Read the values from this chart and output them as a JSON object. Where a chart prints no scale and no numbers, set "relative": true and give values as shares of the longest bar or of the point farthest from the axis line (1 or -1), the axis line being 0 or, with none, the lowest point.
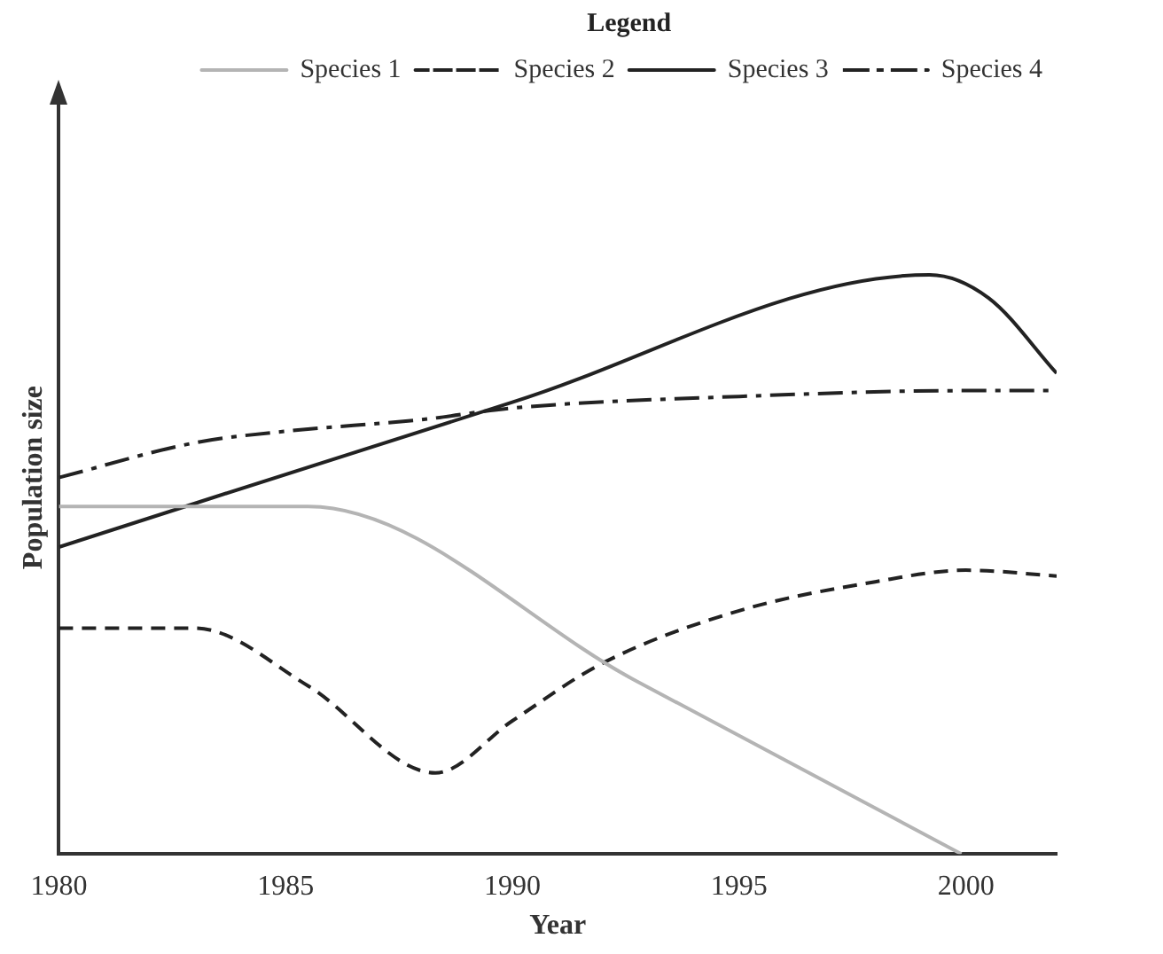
{
  "chart_data": {
    "type": "line",
    "relative": true,
    "xlabel": "Year",
    "ylabel": "Population size",
    "legend_title": "Legend",
    "legend": "top right",
    "grid": false,
    "marker": "none",
    "xlim": [
      1980,
      2002
    ],
    "xticks": [
      1980,
      1985,
      1990,
      1995,
      2000
    ],
    "series": [
      {
        "name": "Species 1",
        "color": "#b4b4b4",
        "line_style": "solid",
        "x": [
          1980,
          1985.5,
          1992.7,
          1999.9
        ],
        "values": [
          0.6,
          0.6,
          0.3,
          0
        ]
      },
      {
        "name": "Species 2",
        "color": "#222222",
        "line_style": "dashed",
        "x": [
          1980,
          1983,
          1985.5,
          1988.3,
          1990,
          1992,
          1995,
          1998,
          2000,
          2002
        ],
        "values": [
          0.39,
          0.39,
          0.29,
          0.14,
          0.23,
          0.33,
          0.42,
          0.47,
          0.49,
          0.48
        ]
      },
      {
        "name": "Species 3",
        "color": "#222222",
        "line_style": "solid",
        "x": [
          1980,
          1990,
          1999.2,
          2000.5,
          2002
        ],
        "values": [
          0.53,
          0.78,
          1,
          0.96,
          0.83
        ]
      },
      {
        "name": "Species 4",
        "color": "#222222",
        "line_style": "dashdot",
        "x": [
          1980,
          1983,
          1985,
          1988,
          1990,
          1995,
          2000,
          2002
        ],
        "values": [
          0.65,
          0.71,
          0.73,
          0.75,
          0.77,
          0.79,
          0.8,
          0.8
        ]
      }
    ]
  }
}
